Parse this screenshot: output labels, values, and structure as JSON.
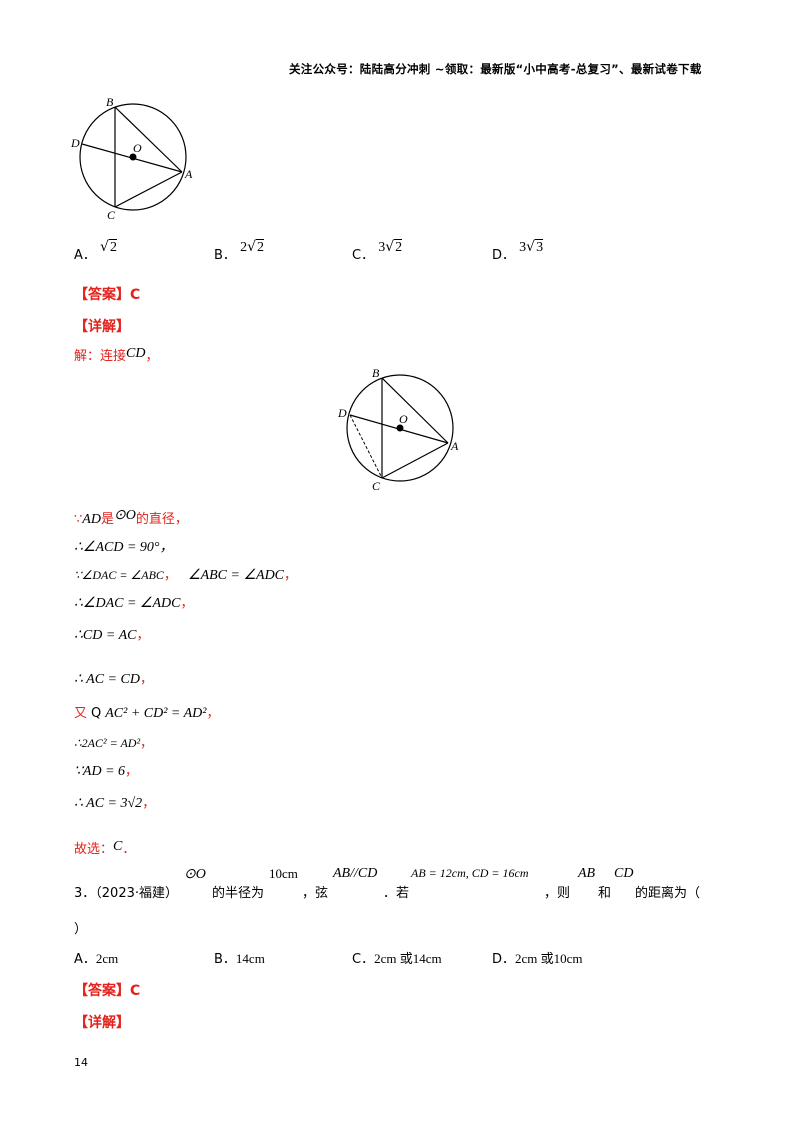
{
  "header": {
    "text": "关注公众号：陆陆高分冲刺  ~领取：最新版“小中高考-总复习”、最新试卷下载"
  },
  "figure1": {
    "labels": {
      "B": "B",
      "D": "D",
      "O": "O",
      "A": "A",
      "C": "C"
    }
  },
  "q2_options": [
    {
      "letter": "A．",
      "coef": "",
      "rad": "2"
    },
    {
      "letter": "B．",
      "coef": "2",
      "rad": "2"
    },
    {
      "letter": "C．",
      "coef": "3",
      "rad": "2"
    },
    {
      "letter": "D．",
      "coef": "3",
      "rad": "3"
    }
  ],
  "answer_label": "【答案】",
  "answer1": "C",
  "detail_label": "【详解】",
  "sol_intro": "解：连接",
  "sol_intro_math": "CD",
  "sol_intro_end": "，",
  "figure2": {
    "labels": {
      "B": "B",
      "D": "D",
      "O": "O",
      "A": "A",
      "C": "C"
    }
  },
  "steps": {
    "s1_pre": "∵",
    "s1_math": "AD",
    "s1_mid": "是",
    "s1_circle": "⊙O",
    "s1_end": "的直径，",
    "s2": "∴∠ACD = 90°，",
    "s3a": "∵∠DAC = ∠ABC",
    "s3b": "，",
    "s3c": "∠ABC = ∠ADC",
    "s3d": "，",
    "s4": "∴∠DAC = ∠ADC",
    "s4_end": "，",
    "s5_pre": "∴",
    "s5_math": "CD = AC",
    "s5_end": "，",
    "s6": "∴ AC = CD",
    "s6_end": "，",
    "s7_pre": "又",
    "s7_q": "Q",
    "s7_math": "AC² + CD² = AD²",
    "s7_end": "，",
    "s8": "∴2AC² = AD²",
    "s8_end": "，",
    "s9": "∵AD = 6",
    "s9_end": "，",
    "s10": "∴ AC = 3√2",
    "s10_end": "，",
    "conclusion_pre": "故选：",
    "conclusion_math": "C",
    "conclusion_end": "．"
  },
  "q3": {
    "number": "3．（2023·福建）",
    "circle": "⊙O",
    "t1": "的半径为",
    "radius": "10cm",
    "t2": "，弦",
    "parallel": "AB//CD",
    "t3": "．若",
    "lengths": "AB = 12cm, CD = 16cm",
    "t4": "，则",
    "ab": "AB",
    "t5": "和",
    "cd": "CD",
    "t6": "的距离为（",
    "close": "）"
  },
  "q3_options": [
    {
      "letter": "A．",
      "value": "2cm"
    },
    {
      "letter": "B．",
      "value": "14cm"
    },
    {
      "letter": "C．",
      "value": "2cm 或14cm"
    },
    {
      "letter": "D．",
      "value": "2cm 或10cm"
    }
  ],
  "answer2": "C",
  "page_number": "14"
}
